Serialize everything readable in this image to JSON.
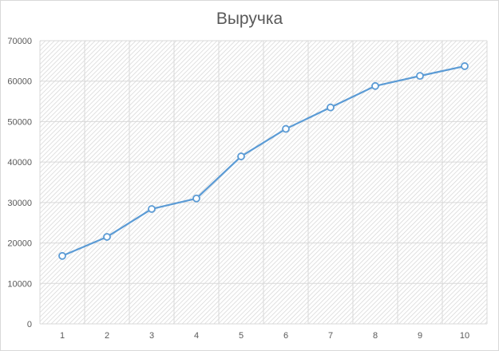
{
  "chart_data": {
    "type": "line",
    "title": "Выручка",
    "xlabel": "",
    "ylabel": "",
    "categories": [
      "1",
      "2",
      "3",
      "4",
      "5",
      "6",
      "7",
      "8",
      "9",
      "10"
    ],
    "series": [
      {
        "values": [
          16800,
          21500,
          28400,
          31000,
          41400,
          48200,
          53500,
          58800,
          61300,
          63700
        ]
      }
    ],
    "ylim": [
      0,
      70000
    ],
    "yticks": [
      "0",
      "10000",
      "20000",
      "30000",
      "40000",
      "50000",
      "60000",
      "70000"
    ],
    "grid": true,
    "legend": "none",
    "colors": {
      "line": "#5b9bd5",
      "marker_fill": "#ffffff",
      "grid": "#d9d9d9",
      "text": "#595959"
    }
  }
}
